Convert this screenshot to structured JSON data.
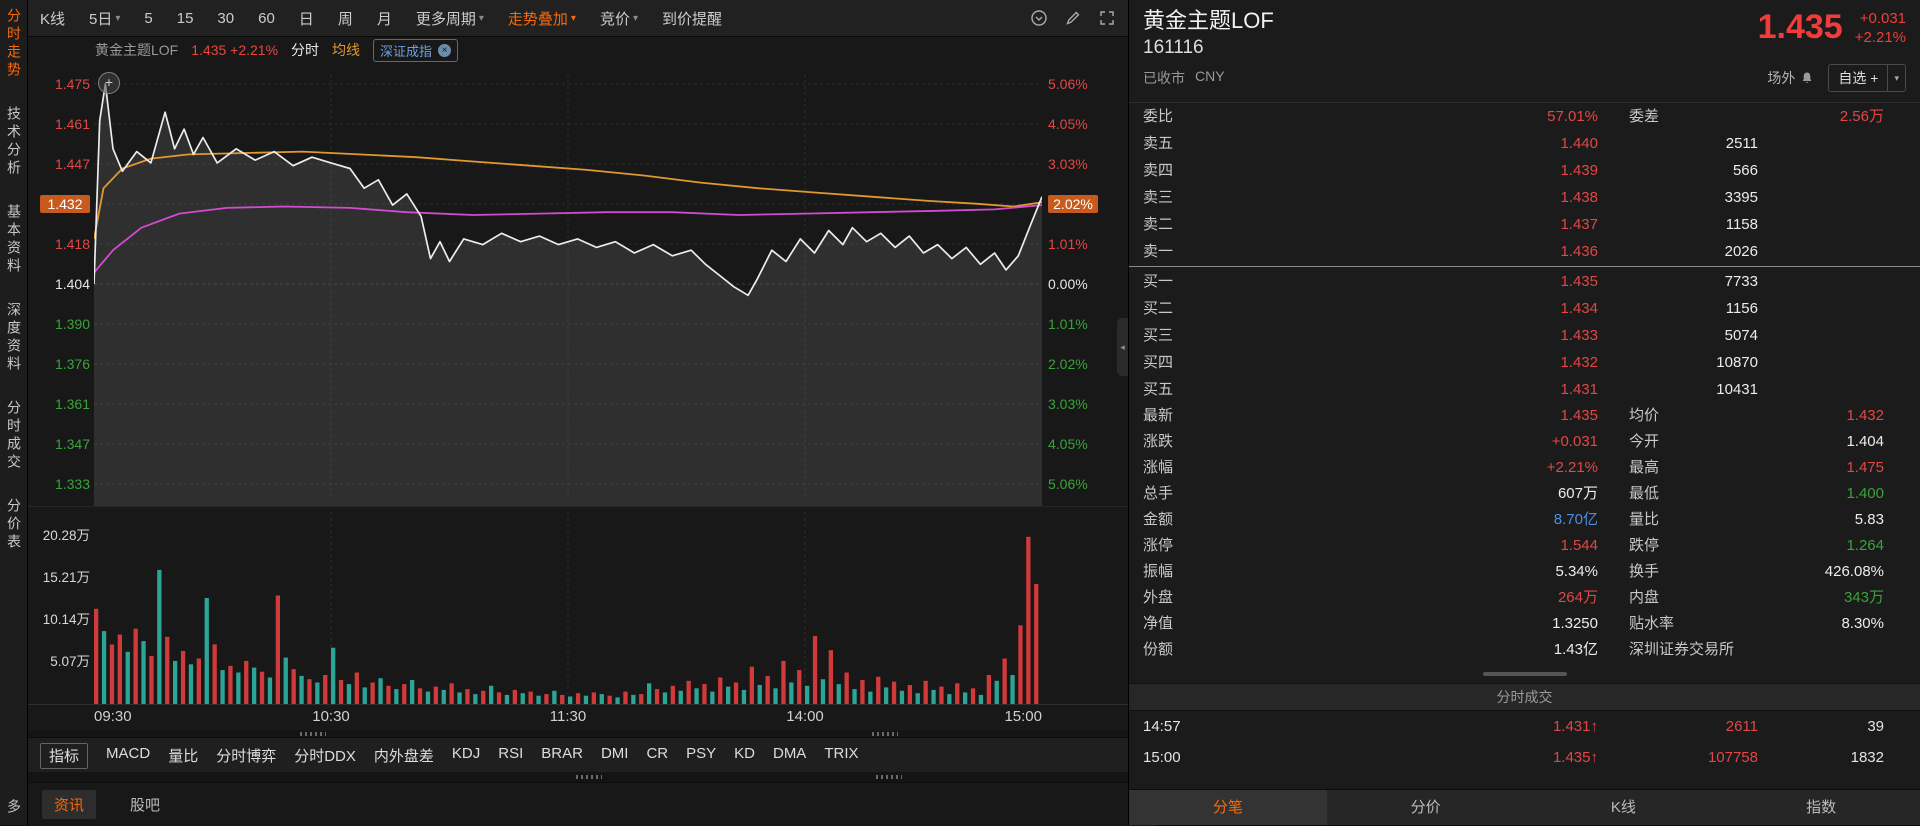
{
  "sidebar": {
    "items": [
      {
        "label": "分时走势",
        "active": true
      },
      {
        "label": "技术分析"
      },
      {
        "label": "基本资料"
      },
      {
        "label": "深度资料"
      },
      {
        "label": "分时成交"
      },
      {
        "label": "分价表"
      },
      {
        "label": "多",
        "bottom": true
      }
    ]
  },
  "toolbar": {
    "items": [
      {
        "label": "K线"
      },
      {
        "label": "5日",
        "caret": true
      },
      {
        "label": "5"
      },
      {
        "label": "15"
      },
      {
        "label": "30"
      },
      {
        "label": "60"
      },
      {
        "label": "日"
      },
      {
        "label": "周"
      },
      {
        "label": "月"
      },
      {
        "label": "更多周期",
        "caret": true
      },
      {
        "label": "走势叠加",
        "caret": true,
        "accent": true
      },
      {
        "label": "竞价",
        "caret": true
      },
      {
        "label": "到价提醒"
      }
    ]
  },
  "chart": {
    "legend": {
      "name": "黄金主题LOF",
      "quote": "1.435 +2.21%",
      "mode": "分时",
      "avg": "均线",
      "overlay": "深证成指"
    },
    "left_axis": [
      {
        "t": "1.475",
        "c": "up"
      },
      {
        "t": "1.461",
        "c": "up"
      },
      {
        "t": "1.447",
        "c": "up"
      },
      {
        "t": "1.432",
        "c": "up",
        "badge": true
      },
      {
        "t": "1.418",
        "c": "up"
      },
      {
        "t": "1.404",
        "c": "flat"
      },
      {
        "t": "1.390",
        "c": "down"
      },
      {
        "t": "1.376",
        "c": "down"
      },
      {
        "t": "1.361",
        "c": "down"
      },
      {
        "t": "1.347",
        "c": "down"
      },
      {
        "t": "1.333",
        "c": "down"
      }
    ],
    "right_axis": [
      {
        "t": "5.06%",
        "c": "up"
      },
      {
        "t": "4.05%",
        "c": "up"
      },
      {
        "t": "3.03%",
        "c": "up"
      },
      {
        "t": "2.02%",
        "c": "up",
        "badge": true
      },
      {
        "t": "1.01%",
        "c": "up"
      },
      {
        "t": "0.00%",
        "c": "flat"
      },
      {
        "t": "1.01%",
        "c": "down"
      },
      {
        "t": "2.02%",
        "c": "down"
      },
      {
        "t": "3.03%",
        "c": "down"
      },
      {
        "t": "4.05%",
        "c": "down"
      },
      {
        "t": "5.06%",
        "c": "down"
      }
    ],
    "volume_axis": [
      {
        "t": "20.28万",
        "v": 20.28
      },
      {
        "t": "15.21万",
        "v": 15.21
      },
      {
        "t": "10.14万",
        "v": 10.14
      },
      {
        "t": "5.07万",
        "v": 5.07
      }
    ],
    "time_axis": [
      "09:30",
      "10:30",
      "11:30",
      "14:00",
      "15:00"
    ],
    "price_range": [
      1.333,
      1.475
    ],
    "volume_max": 21.5,
    "series": {
      "price": [
        [
          0,
          1.404
        ],
        [
          0.006,
          1.462
        ],
        [
          0.012,
          1.475
        ],
        [
          0.02,
          1.452
        ],
        [
          0.03,
          1.444
        ],
        [
          0.045,
          1.451
        ],
        [
          0.06,
          1.447
        ],
        [
          0.075,
          1.465
        ],
        [
          0.085,
          1.452
        ],
        [
          0.095,
          1.459
        ],
        [
          0.105,
          1.45
        ],
        [
          0.115,
          1.456
        ],
        [
          0.13,
          1.447
        ],
        [
          0.15,
          1.452
        ],
        [
          0.17,
          1.448
        ],
        [
          0.19,
          1.451
        ],
        [
          0.21,
          1.446
        ],
        [
          0.23,
          1.449
        ],
        [
          0.25,
          1.447
        ],
        [
          0.27,
          1.445
        ],
        [
          0.285,
          1.438
        ],
        [
          0.3,
          1.441
        ],
        [
          0.315,
          1.432
        ],
        [
          0.33,
          1.436
        ],
        [
          0.345,
          1.428
        ],
        [
          0.355,
          1.413
        ],
        [
          0.365,
          1.419
        ],
        [
          0.375,
          1.412
        ],
        [
          0.39,
          1.42
        ],
        [
          0.41,
          1.418
        ],
        [
          0.43,
          1.422
        ],
        [
          0.45,
          1.419
        ],
        [
          0.47,
          1.421
        ],
        [
          0.49,
          1.418
        ],
        [
          0.51,
          1.42
        ],
        [
          0.53,
          1.417
        ],
        [
          0.55,
          1.419
        ],
        [
          0.57,
          1.415
        ],
        [
          0.59,
          1.418
        ],
        [
          0.61,
          1.414
        ],
        [
          0.63,
          1.416
        ],
        [
          0.645,
          1.411
        ],
        [
          0.66,
          1.407
        ],
        [
          0.675,
          1.403
        ],
        [
          0.69,
          1.4
        ],
        [
          0.7,
          1.406
        ],
        [
          0.715,
          1.416
        ],
        [
          0.73,
          1.412
        ],
        [
          0.745,
          1.42
        ],
        [
          0.76,
          1.415
        ],
        [
          0.775,
          1.423
        ],
        [
          0.79,
          1.418
        ],
        [
          0.8,
          1.424
        ],
        [
          0.815,
          1.419
        ],
        [
          0.83,
          1.422
        ],
        [
          0.845,
          1.417
        ],
        [
          0.86,
          1.421
        ],
        [
          0.875,
          1.415
        ],
        [
          0.89,
          1.418
        ],
        [
          0.905,
          1.413
        ],
        [
          0.92,
          1.417
        ],
        [
          0.935,
          1.411
        ],
        [
          0.95,
          1.415
        ],
        [
          0.962,
          1.409
        ],
        [
          0.975,
          1.414
        ],
        [
          0.988,
          1.425
        ],
        [
          1,
          1.435
        ]
      ],
      "avg": [
        [
          0,
          1.408
        ],
        [
          0.02,
          1.416
        ],
        [
          0.05,
          1.424
        ],
        [
          0.09,
          1.429
        ],
        [
          0.14,
          1.431
        ],
        [
          0.2,
          1.4315
        ],
        [
          0.27,
          1.431
        ],
        [
          0.33,
          1.4295
        ],
        [
          0.4,
          1.4285
        ],
        [
          0.47,
          1.429
        ],
        [
          0.54,
          1.4295
        ],
        [
          0.61,
          1.4295
        ],
        [
          0.68,
          1.4285
        ],
        [
          0.75,
          1.429
        ],
        [
          0.82,
          1.4295
        ],
        [
          0.89,
          1.43
        ],
        [
          0.95,
          1.4305
        ],
        [
          1,
          1.432
        ]
      ],
      "index": [
        [
          0,
          1.42
        ],
        [
          0.01,
          1.438
        ],
        [
          0.03,
          1.445
        ],
        [
          0.06,
          1.4485
        ],
        [
          0.1,
          1.45
        ],
        [
          0.16,
          1.4505
        ],
        [
          0.22,
          1.451
        ],
        [
          0.28,
          1.45
        ],
        [
          0.34,
          1.449
        ],
        [
          0.4,
          1.4475
        ],
        [
          0.46,
          1.446
        ],
        [
          0.52,
          1.4445
        ],
        [
          0.58,
          1.4425
        ],
        [
          0.64,
          1.44
        ],
        [
          0.7,
          1.438
        ],
        [
          0.76,
          1.4365
        ],
        [
          0.82,
          1.435
        ],
        [
          0.88,
          1.4335
        ],
        [
          0.93,
          1.4325
        ],
        [
          0.97,
          1.4315
        ],
        [
          1,
          1.433
        ]
      ]
    },
    "volume_bars": [
      11.5,
      -8.8,
      7.2,
      8.4,
      -6.3,
      9.1,
      -7.6,
      5.8,
      -16.2,
      8.1,
      -5.2,
      6.4,
      -4.8,
      5.5,
      -12.8,
      7.2,
      -4.1,
      4.6,
      -3.8,
      5.2,
      -4.4,
      3.9,
      -3.2,
      13.1,
      -5.6,
      4.2,
      -3.4,
      3.0,
      -2.6,
      3.5,
      -6.8,
      2.9,
      -2.4,
      3.8,
      -2.0,
      2.6,
      -3.1,
      2.2,
      -1.8,
      2.4,
      -2.9,
      1.9,
      -1.5,
      2.1,
      -1.7,
      2.5,
      -1.4,
      1.8,
      -1.2,
      1.6,
      -2.2,
      1.4,
      -1.1,
      1.7,
      -1.3,
      1.5,
      -1.0,
      1.2,
      -1.6,
      1.1,
      -0.9,
      1.3,
      -1.0,
      1.4,
      -1.2,
      1.0,
      -0.8,
      1.5,
      -1.1,
      1.2,
      -2.5,
      1.8,
      -1.4,
      2.2,
      -1.6,
      2.8,
      -1.9,
      2.4,
      -1.5,
      3.2,
      -2.1,
      2.6,
      -1.7,
      4.5,
      -2.3,
      3.4,
      -1.9,
      5.2,
      -2.6,
      4.1,
      -2.2,
      8.2,
      -3.0,
      6.5,
      -2.4,
      3.8,
      -1.8,
      2.9,
      -1.5,
      3.3,
      -2.0,
      2.7,
      -1.6,
      2.3,
      -1.3,
      2.8,
      -1.7,
      2.1,
      -1.2,
      2.5,
      -1.4,
      1.9,
      -1.1,
      3.5,
      -2.8,
      5.5,
      -3.5,
      9.5,
      20.2,
      14.5
    ]
  },
  "indicator": {
    "box": "指标",
    "items": [
      "MACD",
      "量比",
      "分时博弈",
      "分时DDX",
      "内外盘差",
      "KDJ",
      "RSI",
      "BRAR",
      "DMI",
      "CR",
      "PSY",
      "KD",
      "DMA",
      "TRIX"
    ]
  },
  "news_tabs": [
    {
      "label": "资讯",
      "active": true
    },
    {
      "label": "股吧"
    }
  ],
  "quote": {
    "name": "黄金主题LOF",
    "code": "161116",
    "status": "已收市",
    "currency": "CNY",
    "price": "1.435",
    "change": "+0.031",
    "pct": "+2.21%",
    "market": "场外",
    "watch": "自选 +",
    "commission": {
      "l1": "委比",
      "v1": "57.01%",
      "l2": "委差",
      "v2": "2.56万"
    },
    "asks": [
      {
        "label": "卖五",
        "price": "1.440",
        "vol": "2511"
      },
      {
        "label": "卖四",
        "price": "1.439",
        "vol": "566"
      },
      {
        "label": "卖三",
        "price": "1.438",
        "vol": "3395"
      },
      {
        "label": "卖二",
        "price": "1.437",
        "vol": "1158"
      },
      {
        "label": "卖一",
        "price": "1.436",
        "vol": "2026"
      }
    ],
    "bids": [
      {
        "label": "买一",
        "price": "1.435",
        "vol": "7733"
      },
      {
        "label": "买二",
        "price": "1.434",
        "vol": "1156"
      },
      {
        "label": "买三",
        "price": "1.433",
        "vol": "5074"
      },
      {
        "label": "买四",
        "price": "1.432",
        "vol": "10870"
      },
      {
        "label": "买五",
        "price": "1.431",
        "vol": "10431"
      }
    ],
    "stats": [
      [
        {
          "l": "最新",
          "v": "1.435",
          "c": "up"
        },
        {
          "l": "均价",
          "v": "1.432",
          "c": "up"
        }
      ],
      [
        {
          "l": "涨跌",
          "v": "+0.031",
          "c": "up"
        },
        {
          "l": "今开",
          "v": "1.404",
          "c": "flat"
        }
      ],
      [
        {
          "l": "涨幅",
          "v": "+2.21%",
          "c": "up"
        },
        {
          "l": "最高",
          "v": "1.475",
          "c": "up"
        }
      ],
      [
        {
          "l": "总手",
          "v": "607万",
          "c": "flat"
        },
        {
          "l": "最低",
          "v": "1.400",
          "c": "down"
        }
      ],
      [
        {
          "l": "金额",
          "v": "8.70亿",
          "c": "blue"
        },
        {
          "l": "量比",
          "v": "5.83",
          "c": "flat"
        }
      ],
      [
        {
          "l": "涨停",
          "v": "1.544",
          "c": "up"
        },
        {
          "l": "跌停",
          "v": "1.264",
          "c": "down"
        }
      ],
      [
        {
          "l": "振幅",
          "v": "5.34%",
          "c": "flat"
        },
        {
          "l": "换手",
          "v": "426.08%",
          "c": "flat"
        }
      ],
      [
        {
          "l": "外盘",
          "v": "264万",
          "c": "up"
        },
        {
          "l": "内盘",
          "v": "343万",
          "c": "down"
        }
      ],
      [
        {
          "l": "净值",
          "v": "1.3250",
          "c": "flat"
        },
        {
          "l": "贴水率",
          "v": "8.30%",
          "c": "flat"
        }
      ],
      [
        {
          "l": "份额",
          "v": "1.43亿",
          "c": "flat"
        },
        {
          "l": "深圳证券交易所",
          "v": "",
          "c": "flat"
        }
      ]
    ],
    "ticks_header": "分时成交",
    "ticks": [
      {
        "time": "14:57",
        "price": "1.431",
        "arrow": "↑",
        "vol": "2611",
        "count": "39"
      },
      {
        "time": "15:00",
        "price": "1.435",
        "arrow": "↑",
        "vol": "107758",
        "count": "1832"
      }
    ],
    "tabs": [
      {
        "label": "分笔",
        "active": true
      },
      {
        "label": "分价"
      },
      {
        "label": "K线"
      },
      {
        "label": "指数"
      }
    ]
  }
}
